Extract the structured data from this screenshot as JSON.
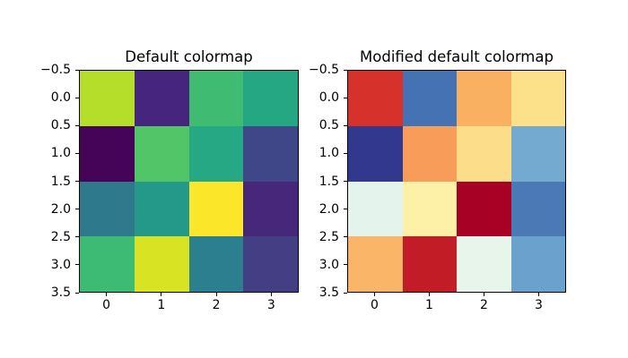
{
  "figure": {
    "background": "#ffffff",
    "text_color": "#000000"
  },
  "chart_data": [
    {
      "type": "heatmap",
      "title": "Default colormap",
      "grid_size": [
        4,
        4
      ],
      "x_tick_labels": [
        "0",
        "1",
        "2",
        "3"
      ],
      "y_tick_labels": [
        "−0.5",
        "0.0",
        "0.5",
        "1.0",
        "1.5",
        "2.0",
        "2.5",
        "3.0",
        "3.5"
      ],
      "cell_colors": [
        [
          "#b5de2b",
          "#46257e",
          "#3fbc71",
          "#26a784"
        ],
        [
          "#450457",
          "#52c569",
          "#27a884",
          "#3f4788"
        ],
        [
          "#2e798c",
          "#24998a",
          "#fce62a",
          "#462779"
        ],
        [
          "#3dba74",
          "#d8e324",
          "#2c7f8e",
          "#443e85"
        ]
      ]
    },
    {
      "type": "heatmap",
      "title": "Modified default colormap",
      "grid_size": [
        4,
        4
      ],
      "x_tick_labels": [
        "0",
        "1",
        "2",
        "3"
      ],
      "y_tick_labels": [
        "−0.5",
        "0.0",
        "0.5",
        "1.0",
        "1.5",
        "2.0",
        "2.5",
        "3.0",
        "3.5"
      ],
      "cell_colors": [
        [
          "#d6312b",
          "#4472b3",
          "#f9b061",
          "#fce08a"
        ],
        [
          "#33388f",
          "#f89c59",
          "#fcdd8a",
          "#74aad0"
        ],
        [
          "#e4f4ec",
          "#fdf0a7",
          "#a70226",
          "#4b79b5"
        ],
        [
          "#fbb568",
          "#c21c27",
          "#e7f5ea",
          "#6aa2cd"
        ]
      ]
    }
  ]
}
